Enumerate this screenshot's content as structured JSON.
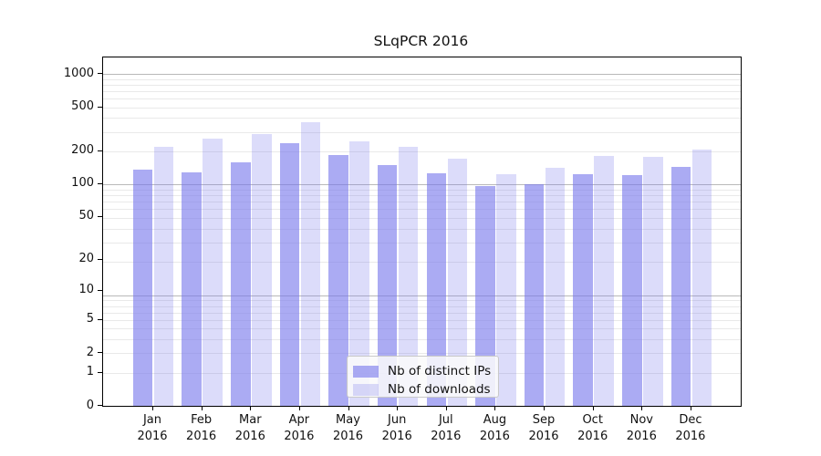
{
  "chart_data": {
    "type": "bar",
    "title": "SLqPCR 2016",
    "categories": [
      "Jan",
      "Feb",
      "Mar",
      "Apr",
      "May",
      "Jun",
      "Jul",
      "Aug",
      "Sep",
      "Oct",
      "Nov",
      "Dec"
    ],
    "category_year": "2016",
    "series": [
      {
        "name": "Nb of distinct IPs",
        "color": "rgba(120,120,235,0.62)",
        "values": [
          135,
          127,
          158,
          235,
          183,
          150,
          126,
          97,
          100,
          124,
          121,
          144
        ]
      },
      {
        "name": "Nb of downloads",
        "color": "rgba(120,120,235,0.26)",
        "values": [
          220,
          260,
          287,
          367,
          245,
          218,
          171,
          123,
          141,
          180,
          177,
          207
        ]
      }
    ],
    "yscale": "log1p",
    "yticks": [
      0,
      1,
      2,
      5,
      10,
      20,
      50,
      100,
      200,
      500,
      1000
    ],
    "ylim": [
      0,
      1410
    ],
    "xlabel": "",
    "ylabel": "",
    "grid": "horizontal major+minor",
    "legend_position": "inside-lower-center",
    "colors": {
      "spine": "#000000",
      "major_grid": "#b9b9b9",
      "minor_grid": "#e9e9e9",
      "bar_base": "#7878eb"
    }
  }
}
